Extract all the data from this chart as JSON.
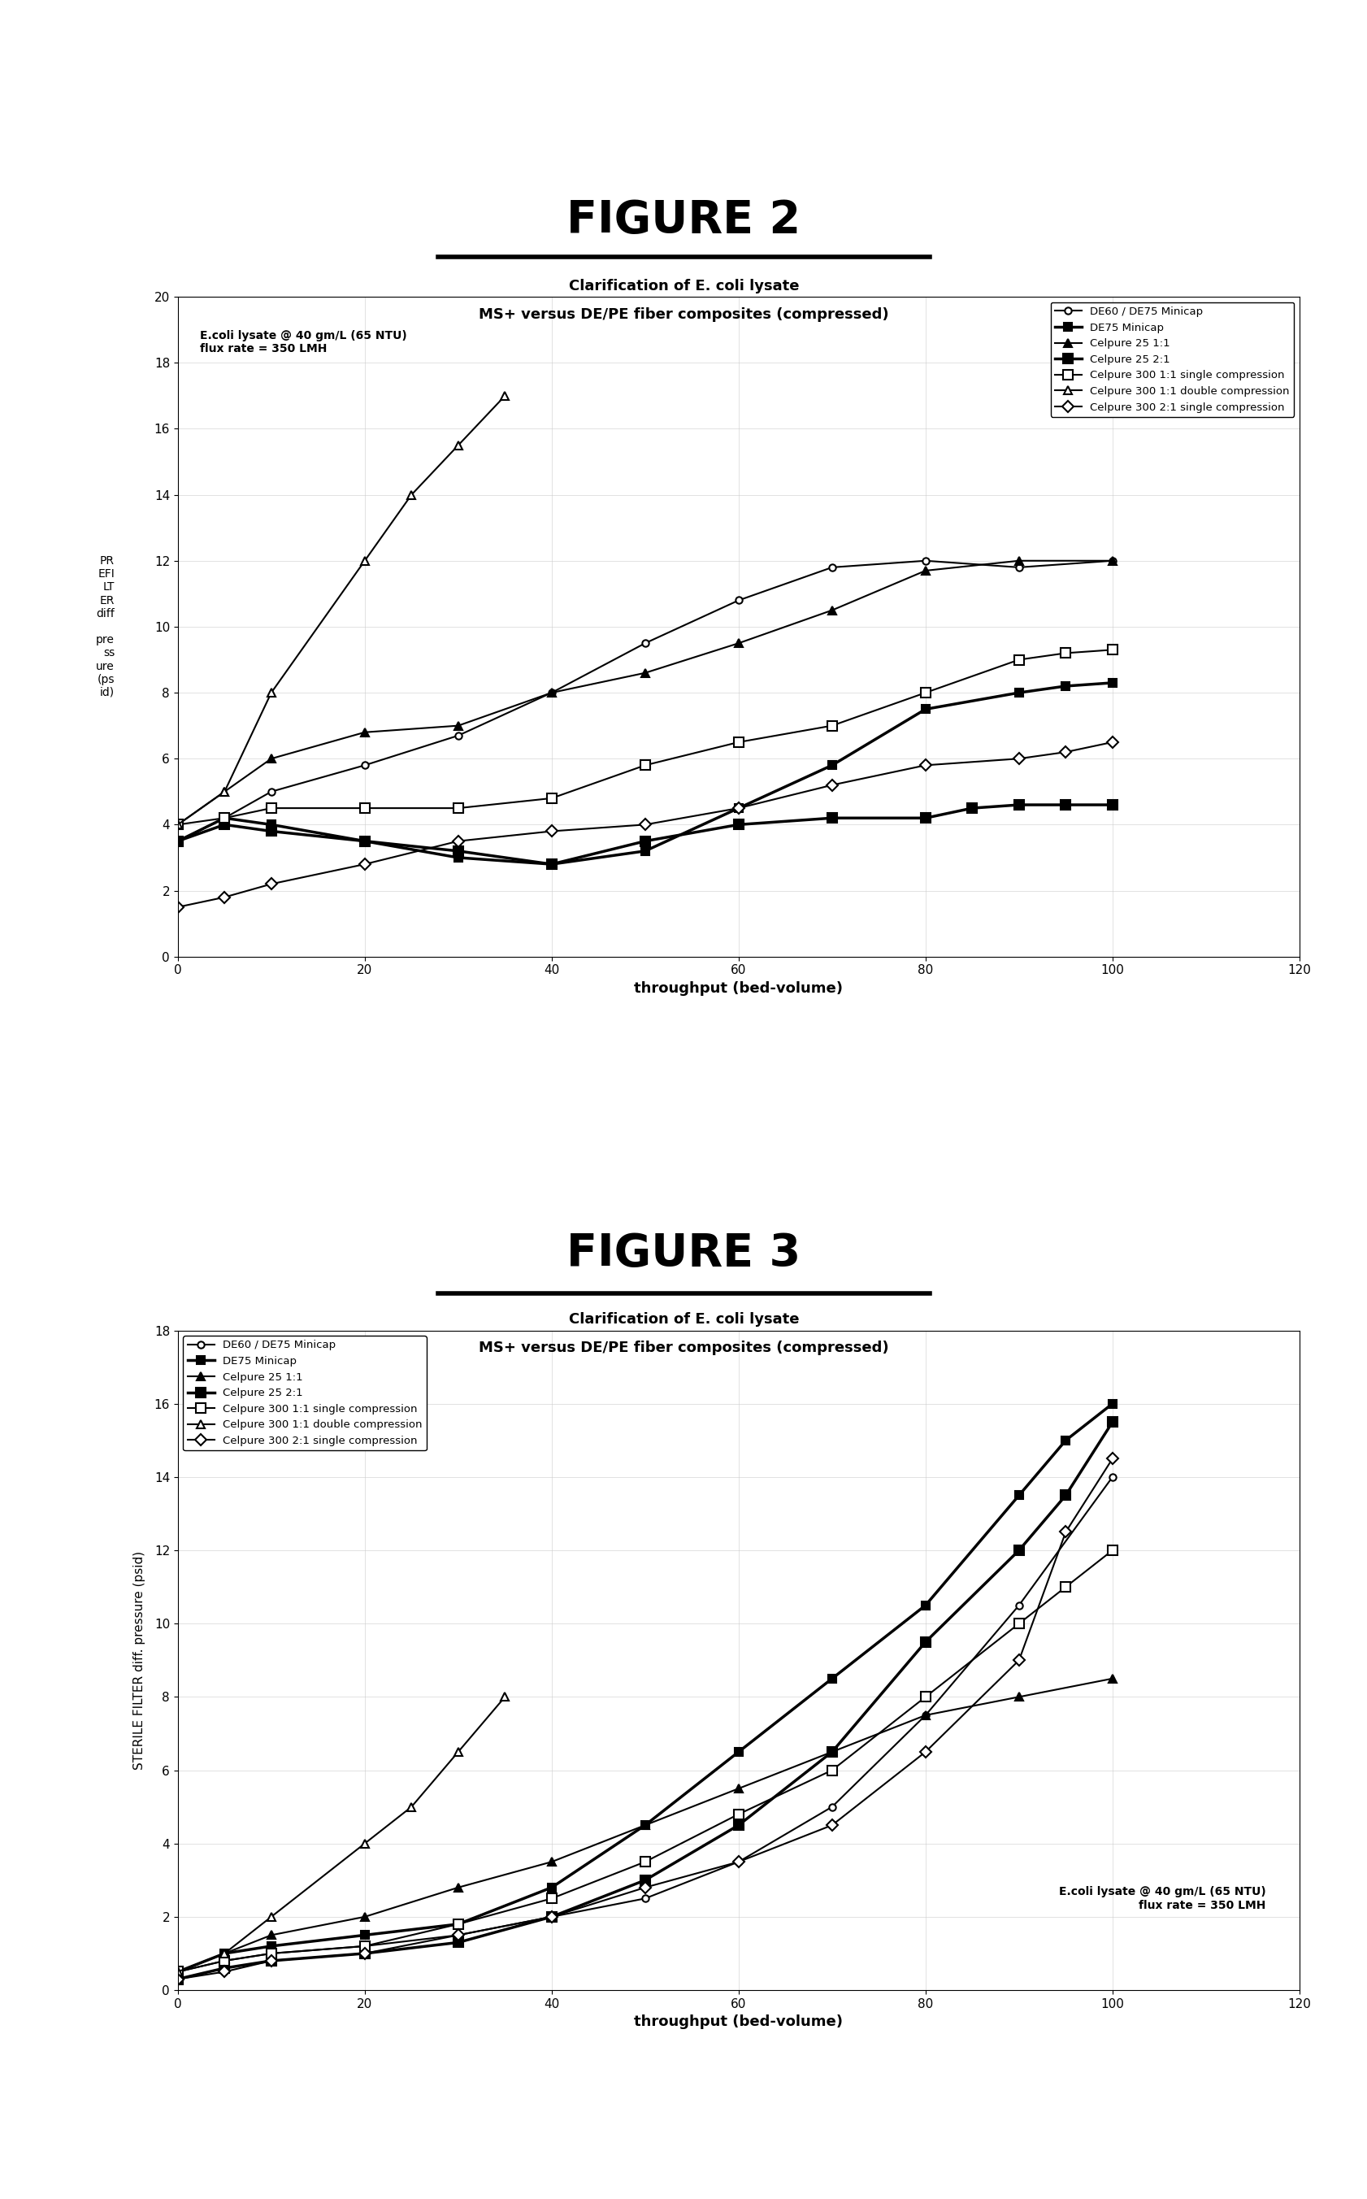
{
  "fig2_title": "FIGURE 2",
  "fig3_title": "FIGURE 3",
  "chart_title_line1": "Clarification of E. coli lysate",
  "chart_title_line2": "MS+ versus DE/PE fiber composites (compressed)",
  "annotation_text": "E.coli lysate @ 40 gm/L (65 NTU)\nflux rate = 350 LMH",
  "xlabel": "throughput (bed-volume)",
  "fig2_ylabel": "PREFILTER diff. pressure (psid)",
  "fig3_ylabel": "STERILE FILTER diff. pressure (psid)",
  "fig2_ylabel_multiline": "PR\nEFI\nLT\nER\ndiff\n\npre\nss\nure\n(ps\nid)",
  "xlim": [
    0,
    120
  ],
  "fig2_ylim": [
    0,
    20
  ],
  "fig3_ylim": [
    0,
    18
  ],
  "fig2_yticks": [
    0,
    2,
    4,
    6,
    8,
    10,
    12,
    14,
    16,
    18,
    20
  ],
  "fig3_yticks": [
    0,
    2,
    4,
    6,
    8,
    10,
    12,
    14,
    16,
    18
  ],
  "xticks": [
    0,
    20,
    40,
    60,
    80,
    100,
    120
  ],
  "series": [
    {
      "label": "DE60 / DE75 Minicap",
      "marker": "o",
      "color": "#000000",
      "linewidth": 1.5,
      "markersize": 6,
      "fillstyle": "none",
      "fig2_x": [
        0,
        5,
        10,
        20,
        30,
        40,
        50,
        60,
        70,
        80,
        90,
        100
      ],
      "fig2_y": [
        3.5,
        4.2,
        5.0,
        5.8,
        6.7,
        8.0,
        9.5,
        10.8,
        11.8,
        12.0,
        11.8,
        12.0
      ],
      "fig3_x": [
        0,
        5,
        10,
        20,
        30,
        40,
        50,
        60,
        70,
        80,
        90,
        100
      ],
      "fig3_y": [
        0.5,
        0.8,
        1.0,
        1.2,
        1.5,
        2.0,
        2.5,
        3.5,
        5.0,
        7.5,
        10.5,
        14.0
      ]
    },
    {
      "label": "DE75 Minicap",
      "marker": "s",
      "color": "#000000",
      "linewidth": 2.5,
      "markersize": 7,
      "fillstyle": "full",
      "fig2_x": [
        0,
        5,
        10,
        20,
        30,
        40,
        50,
        60,
        70,
        80,
        90,
        95,
        100
      ],
      "fig2_y": [
        3.5,
        4.2,
        4.0,
        3.5,
        3.0,
        2.8,
        3.2,
        4.5,
        5.8,
        7.5,
        8.0,
        8.2,
        8.3
      ],
      "fig3_x": [
        0,
        5,
        10,
        20,
        30,
        40,
        50,
        60,
        70,
        80,
        90,
        95,
        100
      ],
      "fig3_y": [
        0.5,
        1.0,
        1.2,
        1.5,
        1.8,
        2.8,
        4.5,
        6.5,
        8.5,
        10.5,
        13.5,
        15.0,
        16.0
      ]
    },
    {
      "label": "Celpure 25 1:1",
      "marker": "^",
      "color": "#000000",
      "linewidth": 1.5,
      "markersize": 7,
      "fillstyle": "full",
      "fig2_x": [
        0,
        5,
        10,
        20,
        30,
        40,
        50,
        60,
        70,
        80,
        90,
        100
      ],
      "fig2_y": [
        4.0,
        5.0,
        6.0,
        6.8,
        7.0,
        8.0,
        8.6,
        9.5,
        10.5,
        11.7,
        12.0,
        12.0
      ],
      "fig3_x": [
        0,
        5,
        10,
        20,
        30,
        40,
        50,
        60,
        70,
        80,
        90,
        100
      ],
      "fig3_y": [
        0.5,
        1.0,
        1.5,
        2.0,
        2.8,
        3.5,
        4.5,
        5.5,
        6.5,
        7.5,
        8.0,
        8.5
      ]
    },
    {
      "label": "Celpure 25 2:1",
      "marker": "s",
      "color": "#000000",
      "linewidth": 2.5,
      "markersize": 8,
      "fillstyle": "full",
      "fig2_x": [
        0,
        5,
        10,
        20,
        30,
        40,
        50,
        60,
        70,
        80,
        85,
        90,
        95,
        100
      ],
      "fig2_y": [
        3.5,
        4.0,
        3.8,
        3.5,
        3.2,
        2.8,
        3.5,
        4.0,
        4.2,
        4.2,
        4.5,
        4.6,
        4.6,
        4.6
      ],
      "fig3_x": [
        0,
        5,
        10,
        20,
        30,
        40,
        50,
        60,
        70,
        80,
        90,
        95,
        100
      ],
      "fig3_y": [
        0.3,
        0.6,
        0.8,
        1.0,
        1.3,
        2.0,
        3.0,
        4.5,
        6.5,
        9.5,
        12.0,
        13.5,
        15.5
      ]
    },
    {
      "label": "Celpure 300 1:1 single compression",
      "marker": "s",
      "color": "#000000",
      "linewidth": 1.5,
      "markersize": 8,
      "fillstyle": "none",
      "fig2_x": [
        0,
        5,
        10,
        20,
        30,
        40,
        50,
        60,
        70,
        80,
        90,
        95,
        100
      ],
      "fig2_y": [
        4.0,
        4.2,
        4.5,
        4.5,
        4.5,
        4.8,
        5.8,
        6.5,
        7.0,
        8.0,
        9.0,
        9.2,
        9.3
      ],
      "fig3_x": [
        0,
        5,
        10,
        20,
        30,
        40,
        50,
        60,
        70,
        80,
        90,
        95,
        100
      ],
      "fig3_y": [
        0.5,
        0.8,
        1.0,
        1.2,
        1.8,
        2.5,
        3.5,
        4.8,
        6.0,
        8.0,
        10.0,
        11.0,
        12.0
      ]
    },
    {
      "label": "Celpure 300 1:1 double compression",
      "marker": "^",
      "color": "#000000",
      "linewidth": 1.5,
      "markersize": 7,
      "fillstyle": "none",
      "fig2_x": [
        0,
        5,
        10,
        20,
        25,
        30,
        35
      ],
      "fig2_y": [
        4.0,
        5.0,
        8.0,
        12.0,
        14.0,
        15.5,
        17.0
      ],
      "fig3_x": [
        0,
        5,
        10,
        20,
        25,
        30,
        35
      ],
      "fig3_y": [
        0.5,
        1.0,
        2.0,
        4.0,
        5.0,
        6.5,
        8.0
      ]
    },
    {
      "label": "Celpure 300 2:1 single compression",
      "marker": "D",
      "color": "#000000",
      "linewidth": 1.5,
      "markersize": 7,
      "fillstyle": "none",
      "fig2_x": [
        0,
        5,
        10,
        20,
        30,
        40,
        50,
        60,
        70,
        80,
        90,
        95,
        100
      ],
      "fig2_y": [
        1.5,
        1.8,
        2.2,
        2.8,
        3.5,
        3.8,
        4.0,
        4.5,
        5.2,
        5.8,
        6.0,
        6.2,
        6.5
      ],
      "fig3_x": [
        0,
        5,
        10,
        20,
        30,
        40,
        50,
        60,
        70,
        80,
        90,
        95,
        100
      ],
      "fig3_y": [
        0.3,
        0.5,
        0.8,
        1.0,
        1.5,
        2.0,
        2.8,
        3.5,
        4.5,
        6.5,
        9.0,
        12.5,
        14.5
      ]
    }
  ]
}
